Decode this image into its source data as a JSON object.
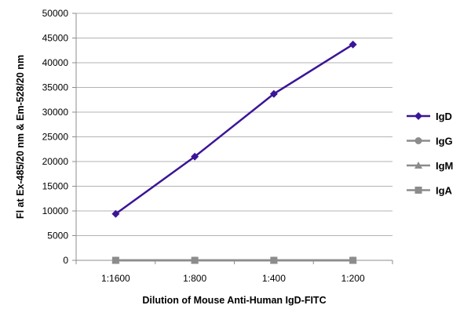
{
  "chart_data": {
    "type": "line",
    "title": "",
    "xlabel": "Dilution of Mouse Anti-Human IgD-FITC",
    "ylabel": "Fl at Ex-485/20 nm & Em-528/20 nm",
    "categories": [
      "1:1600",
      "1:800",
      "1:400",
      "1:200"
    ],
    "ylim": [
      0,
      50000
    ],
    "yticks": [
      0,
      5000,
      10000,
      15000,
      20000,
      25000,
      30000,
      35000,
      40000,
      45000,
      50000
    ],
    "grid": "horizontal",
    "legend_position": "right",
    "series": [
      {
        "name": "IgD",
        "values": [
          9400,
          21000,
          33700,
          43700
        ],
        "color": "#3b1597",
        "marker": "diamond"
      },
      {
        "name": "IgG",
        "values": [
          0,
          0,
          0,
          0
        ],
        "color": "#8c8c8c",
        "marker": "circle"
      },
      {
        "name": "IgM",
        "values": [
          0,
          0,
          0,
          0
        ],
        "color": "#8c8c8c",
        "marker": "triangle"
      },
      {
        "name": "IgA",
        "values": [
          0,
          0,
          0,
          0
        ],
        "color": "#8c8c8c",
        "marker": "square"
      }
    ]
  }
}
